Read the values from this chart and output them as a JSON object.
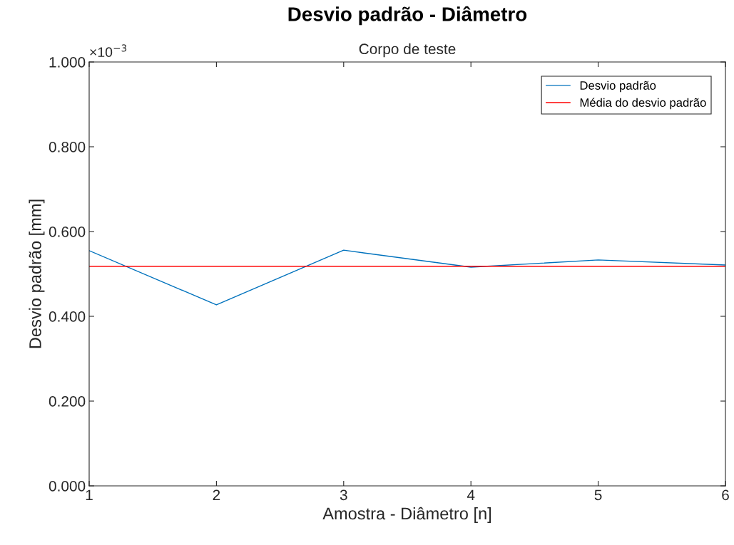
{
  "chart_data": {
    "type": "line",
    "title": "Desvio padrão - Diâmetro",
    "subtitle": "Corpo de teste",
    "xlabel": "Amostra - Diâmetro [n]",
    "ylabel": "Desvio padrão [mm]",
    "x": [
      1,
      2,
      3,
      4,
      5,
      6
    ],
    "series": [
      {
        "name": "Desvio padrão",
        "color": "#0072bd",
        "values": [
          0.555,
          0.427,
          0.556,
          0.516,
          0.533,
          0.521
        ]
      }
    ],
    "ref_lines": [
      {
        "axis": "y",
        "value": 0.518,
        "label": "Média do desvio padrão",
        "color": "#ff0000",
        "line_style": "solid"
      }
    ],
    "xlim": [
      1,
      6
    ],
    "xticks": [
      1,
      2,
      3,
      4,
      5,
      6
    ],
    "ylim": [
      0,
      1
    ],
    "yticks": [
      {
        "value": 0,
        "label": "0.000"
      },
      {
        "value": 0.2,
        "label": "0.200"
      },
      {
        "value": 0.4,
        "label": "0.400"
      },
      {
        "value": 0.6,
        "label": "0.600"
      },
      {
        "value": 0.8,
        "label": "0.800"
      },
      {
        "value": 1,
        "label": "1.000"
      }
    ],
    "annotations": [
      "×10$^{−3}$"
    ],
    "grid": false,
    "legend": "top right",
    "marker": "none",
    "line_style": "solid"
  }
}
